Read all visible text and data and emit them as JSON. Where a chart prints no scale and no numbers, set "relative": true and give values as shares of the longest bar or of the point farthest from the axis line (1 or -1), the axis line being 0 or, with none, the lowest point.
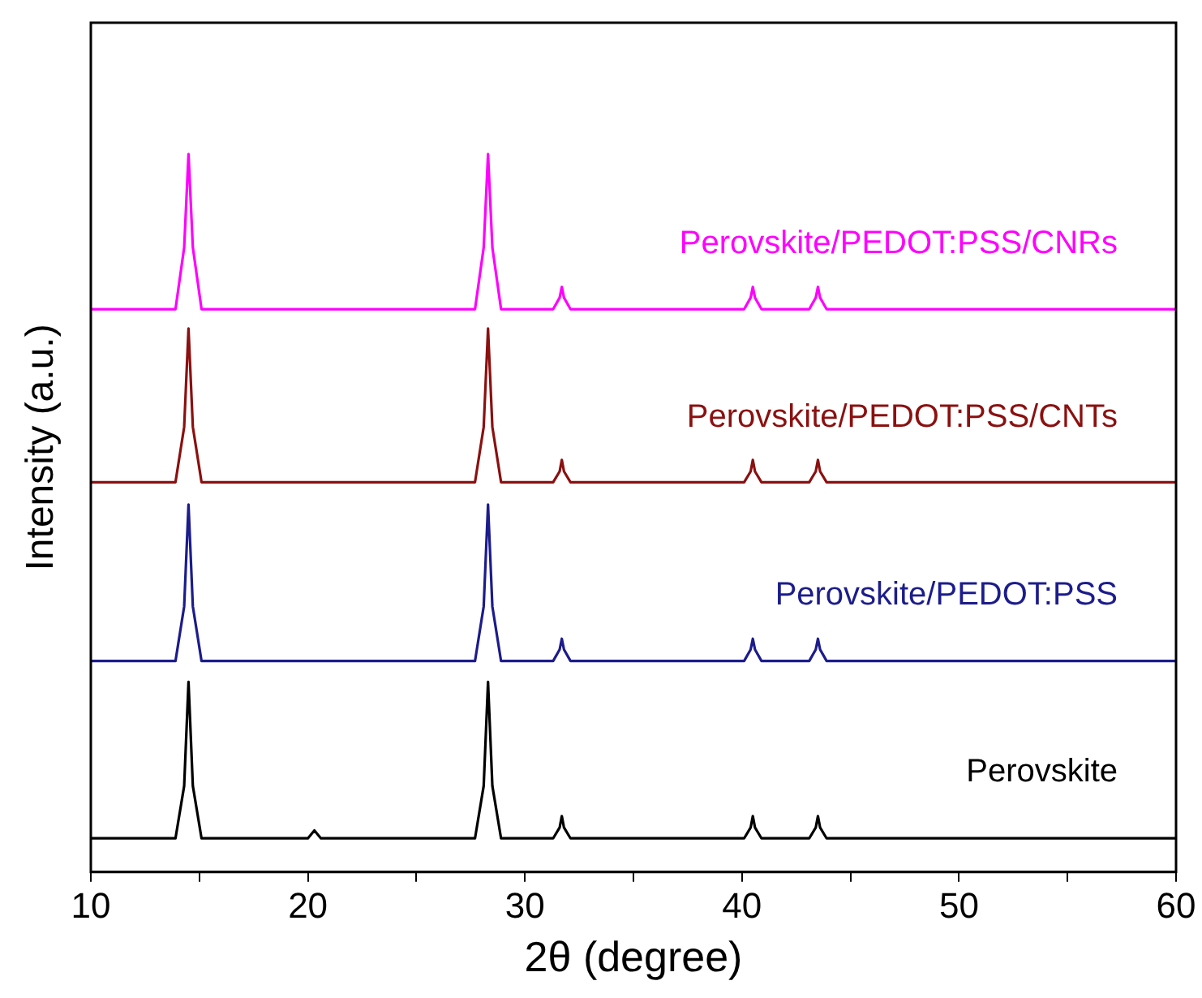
{
  "chart_data": {
    "type": "line",
    "relative": true,
    "xlabel": "2θ (degree)",
    "ylabel": "Intensity (a.u.)",
    "x": [
      10,
      13.9,
      14.3,
      14.5,
      14.7,
      15.1,
      27.7,
      28.1,
      28.3,
      28.5,
      28.9,
      31.3,
      31.6,
      31.7,
      31.8,
      32.1,
      40.1,
      40.4,
      40.5,
      40.6,
      40.9,
      43.1,
      43.4,
      43.5,
      43.6,
      43.9,
      60
    ],
    "xlim": [
      10,
      60
    ],
    "xticks": [
      10,
      {
        "value": 15,
        "label": null
      },
      20,
      {
        "value": 25,
        "label": null
      },
      30,
      {
        "value": 35,
        "label": null
      },
      40,
      {
        "value": 45,
        "label": null
      },
      50,
      {
        "value": 55,
        "label": null
      },
      60
    ],
    "grid": false,
    "legend": false,
    "marker": "none",
    "line_style": "solid",
    "series": [
      {
        "name": "Perovskite",
        "color": "#000000",
        "x": [
          10,
          13.9,
          14.3,
          14.5,
          14.7,
          15.1,
          20.0,
          20.3,
          20.6,
          27.7,
          28.1,
          28.3,
          28.5,
          28.9,
          31.3,
          31.6,
          31.7,
          31.8,
          32.1,
          40.1,
          40.4,
          40.5,
          40.6,
          40.9,
          43.1,
          43.4,
          43.5,
          43.6,
          43.9,
          60
        ],
        "values": [
          0.047,
          0.047,
          0.12,
          0.265,
          0.12,
          0.047,
          0.047,
          0.058,
          0.047,
          0.047,
          0.12,
          0.265,
          0.12,
          0.047,
          0.047,
          0.062,
          0.078,
          0.062,
          0.047,
          0.047,
          0.062,
          0.078,
          0.062,
          0.047,
          0.047,
          0.062,
          0.078,
          0.062,
          0.047,
          0.047
        ]
      },
      {
        "name": "Perovskite/PEDOT:PSS",
        "color": "#1c1c8c",
        "values": [
          0.294,
          0.294,
          0.37,
          0.512,
          0.37,
          0.294,
          0.294,
          0.37,
          0.512,
          0.37,
          0.294,
          0.294,
          0.31,
          0.325,
          0.31,
          0.294,
          0.294,
          0.31,
          0.325,
          0.31,
          0.294,
          0.294,
          0.31,
          0.325,
          0.31,
          0.294,
          0.294
        ]
      },
      {
        "name": "Perovskite/PEDOT:PSS/CNTs",
        "color": "#8b1010",
        "values": [
          0.543,
          0.543,
          0.62,
          0.757,
          0.62,
          0.543,
          0.543,
          0.62,
          0.757,
          0.62,
          0.543,
          0.543,
          0.558,
          0.574,
          0.558,
          0.543,
          0.543,
          0.558,
          0.574,
          0.558,
          0.543,
          0.543,
          0.558,
          0.574,
          0.558,
          0.543,
          0.543
        ]
      },
      {
        "name": "Perovskite/PEDOT:PSS/CNRs",
        "color": "#ff00ff",
        "values": [
          0.784,
          0.784,
          0.87,
          1,
          0.87,
          0.784,
          0.784,
          0.87,
          1,
          0.87,
          0.784,
          0.784,
          0.8,
          0.815,
          0.8,
          0.784,
          0.784,
          0.8,
          0.815,
          0.8,
          0.784,
          0.784,
          0.8,
          0.815,
          0.8,
          0.784,
          0.784
        ]
      }
    ]
  }
}
